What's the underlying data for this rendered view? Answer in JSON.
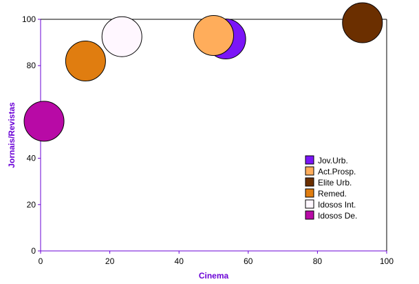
{
  "chart_data": {
    "type": "scatter",
    "title": "",
    "xlabel": "Cinema",
    "ylabel": "Jornais/Revistas",
    "axis_title_color": "#6a00d6",
    "axis_line_color": "#6a00d6",
    "xlim": [
      0,
      100
    ],
    "ylim": [
      0,
      100
    ],
    "xticks": [
      0,
      20,
      40,
      60,
      80,
      100
    ],
    "yticks": [
      0,
      20,
      40,
      60,
      80,
      100
    ],
    "grid": false,
    "legend_position": "right-middle",
    "series": [
      {
        "name": "Jov.Urb.",
        "x": 53.5,
        "y": 91.5,
        "color": "#7b15f7"
      },
      {
        "name": "Act.Prosp.",
        "x": 50.0,
        "y": 93.0,
        "color": "#ffad5b"
      },
      {
        "name": "Elite Urb.",
        "x": 93.0,
        "y": 98.5,
        "color": "#6b2f00"
      },
      {
        "name": "Remed.",
        "x": 13.0,
        "y": 82.0,
        "color": "#e07d10"
      },
      {
        "name": "Idosos Int.",
        "x": 23.5,
        "y": 92.5,
        "color": "#fff7ff"
      },
      {
        "name": "Idosos De.",
        "x": 1.0,
        "y": 56.0,
        "color": "#b80aa6"
      }
    ]
  }
}
